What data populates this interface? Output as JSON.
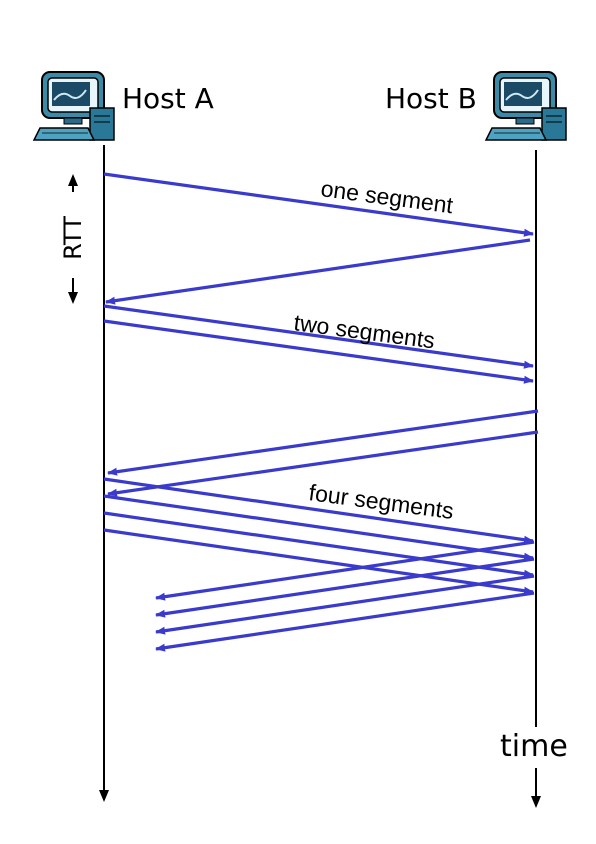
{
  "hosts": {
    "a_label": "Host A",
    "b_label": "Host B"
  },
  "labels": {
    "rtt": "RTT",
    "time": "time",
    "one_segment": "one segment",
    "two_segments": "two segments",
    "four_segments": "four segments"
  },
  "icons": {
    "host_a": "computer-icon",
    "host_b": "computer-icon"
  },
  "colors": {
    "arrow": "#3a3acc",
    "timeline": "#000000"
  }
}
